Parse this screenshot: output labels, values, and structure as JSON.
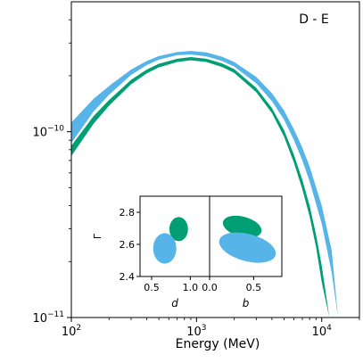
{
  "chart_data": {
    "type": "area",
    "panel_label": "D - E",
    "xlabel": "Energy (MeV)",
    "ylabel": "",
    "xscale": "log",
    "yscale": "log",
    "xlim": [
      100,
      20000
    ],
    "ylim": [
      1e-11,
      5e-10
    ],
    "x_ticks": [
      {
        "value": 100,
        "base": "10",
        "exp": "2"
      },
      {
        "value": 1000,
        "base": "10",
        "exp": "3"
      },
      {
        "value": 10000,
        "base": "10",
        "exp": "4"
      }
    ],
    "y_ticks": [
      {
        "value": 1e-11,
        "base": "10",
        "exp": "−11"
      },
      {
        "value": 1e-10,
        "base": "10",
        "exp": "−10"
      }
    ],
    "x_minor_ticks": [
      200,
      300,
      400,
      500,
      600,
      700,
      800,
      900,
      2000,
      3000,
      4000,
      5000,
      6000,
      7000,
      8000,
      9000,
      20000
    ],
    "y_minor_ticks": [
      2e-11,
      3e-11,
      4e-11,
      5e-11,
      6e-11,
      7e-11,
      8e-11,
      9e-11,
      2e-10,
      3e-10,
      4e-10
    ],
    "colors": {
      "blue": "#56b4e9",
      "green": "#009e73"
    },
    "series": [
      {
        "color": "blue",
        "x": [
          100,
          150,
          200,
          300,
          400,
          500,
          700,
          900,
          1200,
          1600,
          2000,
          3000,
          4000,
          5000,
          6000,
          7000,
          8000,
          10000,
          12000,
          13500
        ],
        "lower": [
          8.7e-11,
          1.28e-10,
          1.58e-10,
          2.02e-10,
          2.28e-10,
          2.44e-10,
          2.58e-10,
          2.6e-10,
          2.54e-10,
          2.4e-10,
          2.24e-10,
          1.82e-10,
          1.46e-10,
          1.16e-10,
          9e-11,
          7e-11,
          5.4e-11,
          3.2e-11,
          1.75e-11,
          1e-11
        ],
        "upper": [
          1.12e-10,
          1.5e-10,
          1.76e-10,
          2.16e-10,
          2.4e-10,
          2.55e-10,
          2.68e-10,
          2.72e-10,
          2.67e-10,
          2.53e-10,
          2.37e-10,
          1.97e-10,
          1.61e-10,
          1.3e-10,
          1.03e-10,
          8.2e-11,
          6.5e-11,
          4e-11,
          2.3e-11,
          1e-11
        ]
      },
      {
        "color": "green",
        "x": [
          100,
          150,
          200,
          300,
          400,
          500,
          700,
          900,
          1200,
          1600,
          2000,
          3000,
          4000,
          5000,
          6000,
          7000,
          8000,
          9000,
          10000,
          11500
        ],
        "lower": [
          7.4e-11,
          1.1e-10,
          1.38e-10,
          1.8e-10,
          2.06e-10,
          2.22e-10,
          2.37e-10,
          2.42e-10,
          2.37e-10,
          2.23e-10,
          2.07e-10,
          1.63e-10,
          1.26e-10,
          9.4e-11,
          6.8e-11,
          4.9e-11,
          3.5e-11,
          2.4e-11,
          1.55e-11,
          1e-11
        ],
        "upper": [
          8.4e-11,
          1.21e-10,
          1.48e-10,
          1.9e-10,
          2.16e-10,
          2.32e-10,
          2.47e-10,
          2.52e-10,
          2.47e-10,
          2.33e-10,
          2.17e-10,
          1.72e-10,
          1.34e-10,
          1.02e-10,
          7.5e-11,
          5.5e-11,
          4e-11,
          2.8e-11,
          1.9e-11,
          1e-11
        ]
      }
    ],
    "inset": {
      "ylabel": "Γ",
      "ylim": [
        2.4,
        2.9
      ],
      "y_ticks": [
        "2.4",
        "2.6",
        "2.8"
      ],
      "panels": [
        {
          "xlabel": "d",
          "xlim": [
            0.35,
            1.25
          ],
          "x_ticks": [
            "0.5",
            "1.0"
          ],
          "x_tick_values": [
            0.5,
            1.0
          ],
          "ellipses": [
            {
              "color": "green",
              "cx": 0.85,
              "cy": 2.695,
              "rx": 0.12,
              "ry": 0.075,
              "angle": 0
            },
            {
              "color": "blue",
              "cx": 0.67,
              "cy": 2.575,
              "rx": 0.15,
              "ry": 0.095,
              "angle": 0
            }
          ]
        },
        {
          "xlabel": "b",
          "xlim": [
            0.0,
            0.82
          ],
          "x_ticks": [
            "0.0",
            "0.5"
          ],
          "x_tick_values": [
            0.0,
            0.5
          ],
          "ellipses": [
            {
              "color": "green",
              "cx": 0.37,
              "cy": 2.71,
              "rx": 0.225,
              "ry": 0.063,
              "angle": 15
            },
            {
              "color": "blue",
              "cx": 0.43,
              "cy": 2.58,
              "rx": 0.33,
              "ry": 0.085,
              "angle": 15
            }
          ]
        }
      ]
    }
  }
}
